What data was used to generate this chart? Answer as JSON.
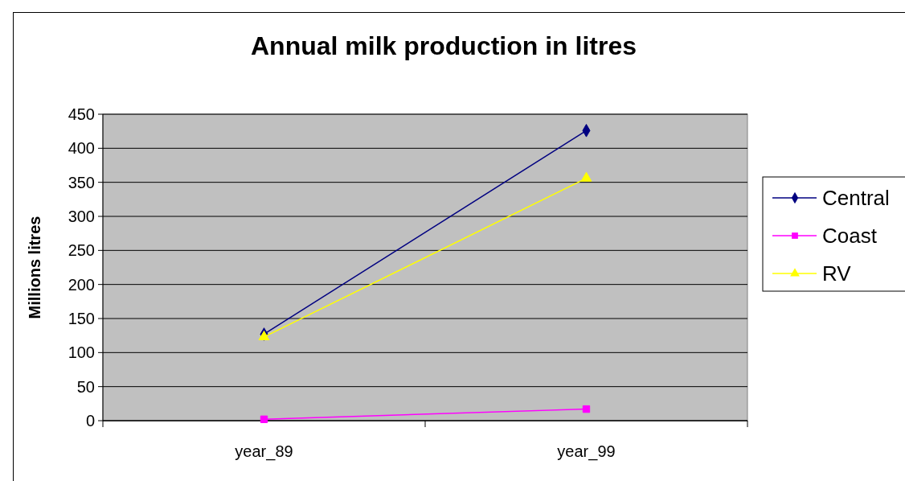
{
  "chart_data": {
    "type": "line",
    "title": "Annual milk production in litres",
    "ylabel": "Millions litres",
    "categories": [
      "year_89",
      "year_99"
    ],
    "series": [
      {
        "name": "Central",
        "color": "#000080",
        "marker": "diamond",
        "values": [
          127,
          426
        ]
      },
      {
        "name": "Coast",
        "color": "#ff00ff",
        "marker": "square",
        "values": [
          2,
          17
        ]
      },
      {
        "name": "RV",
        "color": "#ffff00",
        "marker": "triangle",
        "values": [
          123,
          356
        ]
      }
    ],
    "ylim": [
      0,
      450
    ],
    "yticks": [
      0,
      50,
      100,
      150,
      200,
      250,
      300,
      350,
      400,
      450
    ],
    "grid": "y",
    "legend": "right"
  }
}
